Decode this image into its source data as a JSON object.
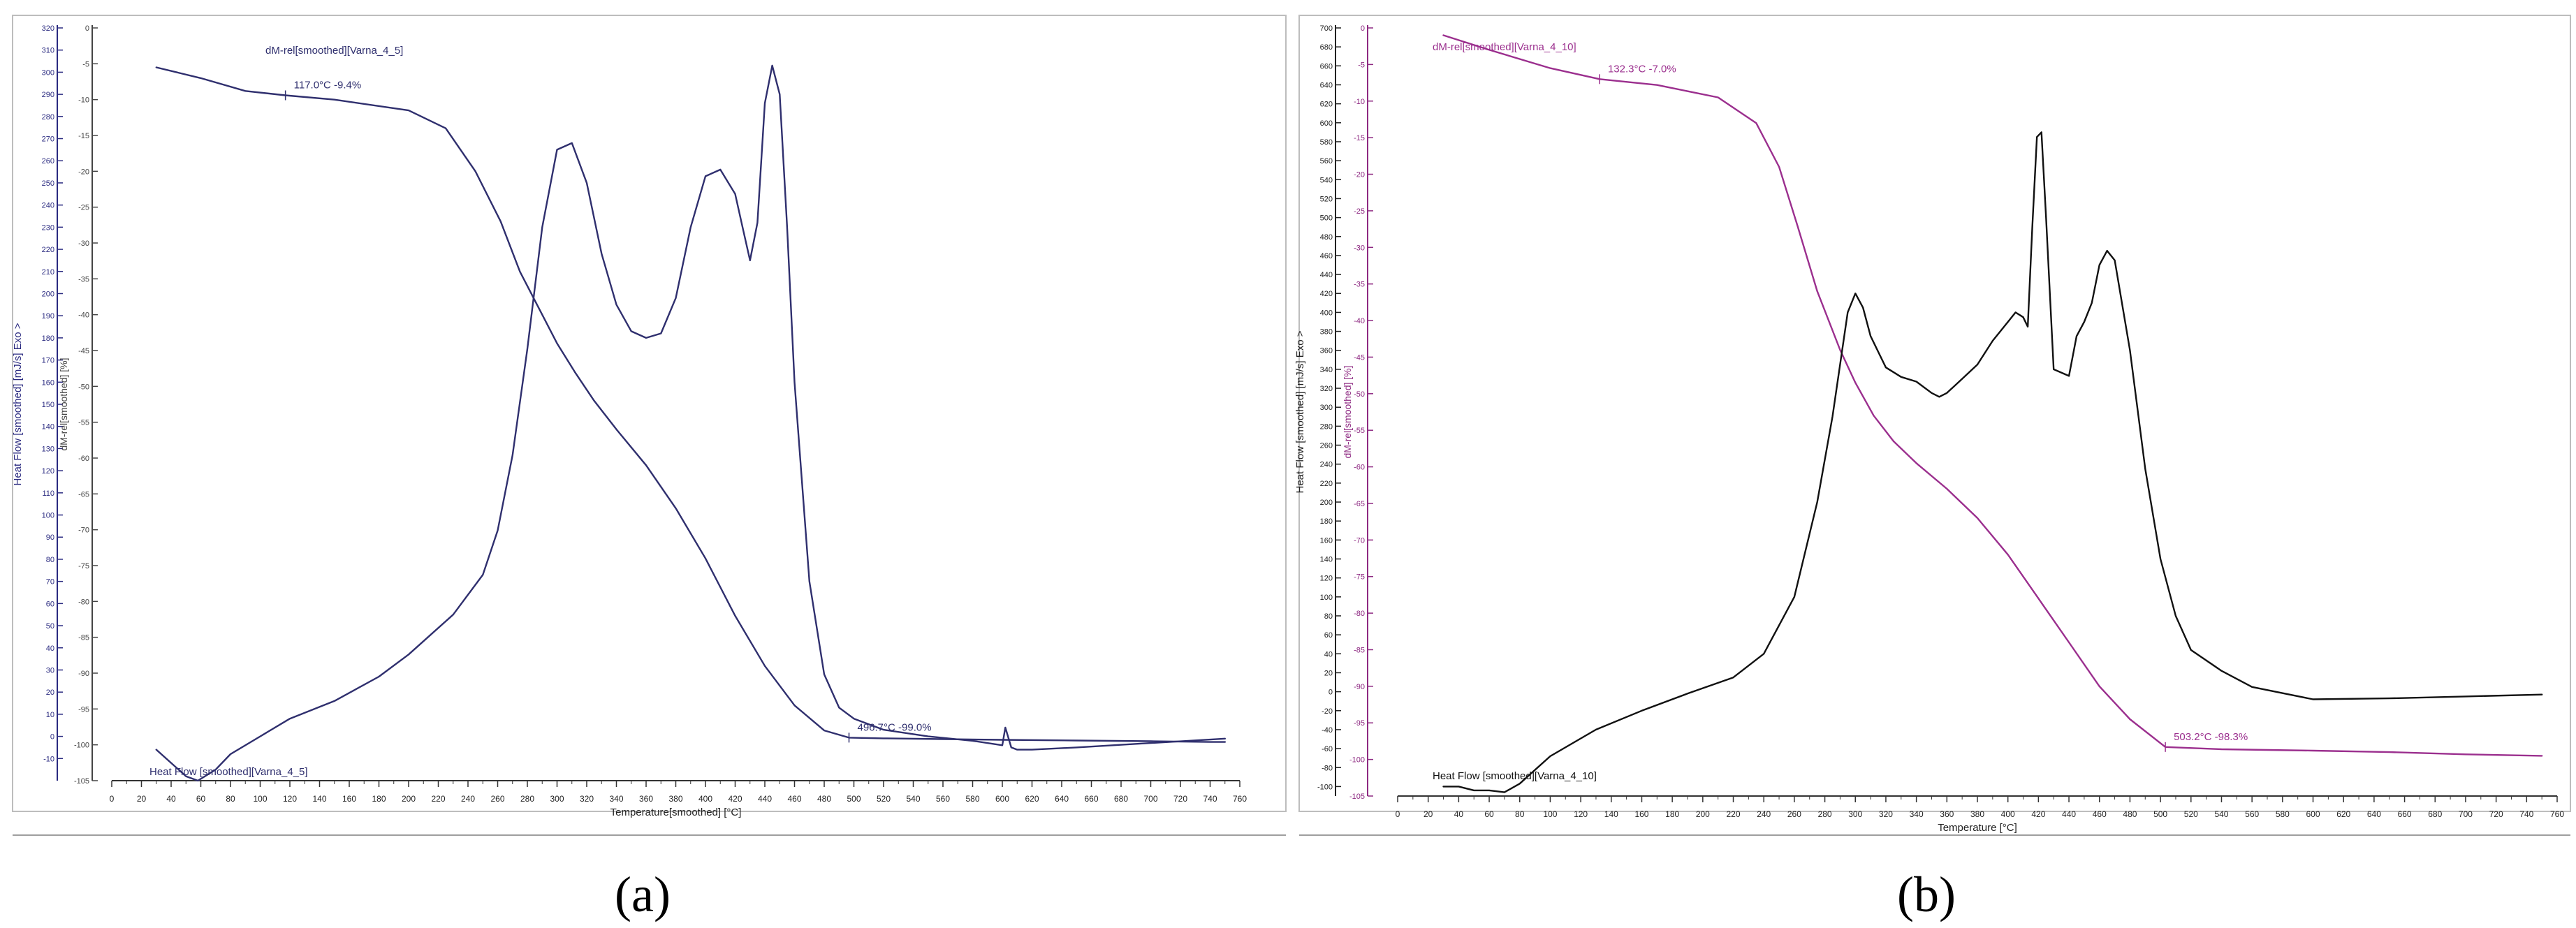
{
  "chart_data": [
    {
      "type": "line",
      "panel_label": "(a)",
      "xlabel": "Temperature[smoothed]  [°C]",
      "ylabel_left": "Heat Flow [smoothed]  [mJ/s] Exo >",
      "ylabel_right": "dM-rel[smoothed]  [%]",
      "xlim": [
        0,
        760
      ],
      "ylim_left": [
        -20,
        320
      ],
      "ylim_right": [
        -105,
        0
      ],
      "x_ticks": [
        0,
        20,
        40,
        60,
        80,
        100,
        120,
        140,
        160,
        180,
        200,
        220,
        240,
        260,
        280,
        300,
        320,
        340,
        360,
        380,
        400,
        420,
        440,
        460,
        480,
        500,
        520,
        540,
        560,
        580,
        600,
        620,
        640,
        660,
        680,
        700,
        720,
        740,
        760
      ],
      "y_ticks_left": [
        -10,
        0,
        10,
        20,
        30,
        40,
        50,
        60,
        70,
        80,
        90,
        100,
        110,
        120,
        130,
        140,
        150,
        160,
        170,
        180,
        190,
        200,
        210,
        220,
        230,
        240,
        250,
        260,
        270,
        280,
        290,
        300,
        310,
        320
      ],
      "y_ticks_right": [
        0,
        -5,
        -10,
        -15,
        -20,
        -25,
        -30,
        -35,
        -40,
        -45,
        -50,
        -55,
        -60,
        -65,
        -70,
        -75,
        -80,
        -85,
        -90,
        -95,
        -100,
        -105
      ],
      "series": [
        {
          "name": "dM-rel[smoothed][Varna_4_5]",
          "axis": "right",
          "color": "#2f2f6e",
          "x": [
            30,
            60,
            90,
            117,
            150,
            200,
            225,
            245,
            262,
            275,
            290,
            300,
            312,
            325,
            340,
            360,
            380,
            400,
            420,
            440,
            460,
            480,
            496.7,
            520,
            560,
            600,
            650,
            700,
            740,
            750
          ],
          "y": [
            -5.5,
            -7.0,
            -8.8,
            -9.4,
            -10.0,
            -11.5,
            -14.0,
            -20.0,
            -27.0,
            -34.0,
            -40.0,
            -44.0,
            -48.0,
            -52.0,
            -56.0,
            -61.0,
            -67.0,
            -74.0,
            -82.0,
            -89.0,
            -94.5,
            -98.0,
            -99.0,
            -99.1,
            -99.2,
            -99.3,
            -99.4,
            -99.5,
            -99.6,
            -99.6
          ]
        },
        {
          "name": "Heat Flow [smoothed][Varna_4_5]",
          "axis": "left",
          "color": "#2f2f6e",
          "x": [
            30,
            40,
            50,
            58,
            70,
            80,
            100,
            120,
            150,
            180,
            200,
            230,
            250,
            260,
            270,
            280,
            290,
            300,
            310,
            320,
            330,
            340,
            350,
            360,
            370,
            380,
            390,
            400,
            410,
            420,
            425,
            430,
            435,
            440,
            445,
            450,
            455,
            460,
            470,
            480,
            490,
            500,
            520,
            550,
            580,
            600,
            602,
            606,
            610,
            620,
            650,
            700,
            750
          ],
          "y": [
            -6,
            -12,
            -18,
            -20,
            -15,
            -8,
            0,
            8,
            16,
            27,
            37,
            55,
            73,
            93,
            127,
            175,
            230,
            265,
            268,
            250,
            218,
            195,
            183,
            180,
            182,
            198,
            230,
            253,
            256,
            245,
            230,
            215,
            232,
            286,
            303,
            290,
            230,
            160,
            70,
            28,
            13,
            8,
            3,
            0,
            -2,
            -4,
            4,
            -5,
            -6,
            -6,
            -5,
            -3,
            -1
          ]
        }
      ],
      "annotations": [
        {
          "text": "117.0°C  -9.4%",
          "x": 117,
          "y": -9.4
        },
        {
          "text": "496.7°C  -99.0%",
          "x": 496.7,
          "y": -99.0
        }
      ]
    },
    {
      "type": "line",
      "panel_label": "(b)",
      "xlabel": "Temperature  [°C]",
      "ylabel_left": "Heat Flow [smoothed]  [mJ/s] Exo >",
      "ylabel_right": "dM-rel[smoothed]  [%]",
      "xlim": [
        0,
        760
      ],
      "ylim_left": [
        -110,
        700
      ],
      "ylim_right": [
        -105,
        0
      ],
      "x_ticks": [
        0,
        20,
        40,
        60,
        80,
        100,
        120,
        140,
        160,
        180,
        200,
        220,
        240,
        260,
        280,
        300,
        320,
        340,
        360,
        380,
        400,
        420,
        440,
        460,
        480,
        500,
        520,
        540,
        560,
        580,
        600,
        620,
        640,
        660,
        680,
        700,
        720,
        740,
        760
      ],
      "y_ticks_left": [
        -100,
        -80,
        -60,
        -40,
        -20,
        0,
        20,
        40,
        60,
        80,
        100,
        120,
        140,
        160,
        180,
        200,
        220,
        240,
        260,
        280,
        300,
        320,
        340,
        360,
        380,
        400,
        420,
        440,
        460,
        480,
        500,
        520,
        540,
        560,
        580,
        600,
        620,
        640,
        660,
        680,
        700
      ],
      "y_ticks_right": [
        0,
        -5,
        -10,
        -15,
        -20,
        -25,
        -30,
        -35,
        -40,
        -45,
        -50,
        -55,
        -60,
        -65,
        -70,
        -75,
        -80,
        -85,
        -90,
        -95,
        -100,
        -105
      ],
      "series": [
        {
          "name": "dM-rel[smoothed][Varna_4_10]",
          "axis": "right",
          "color": "#9b2f8e",
          "x": [
            30,
            60,
            100,
            132.3,
            170,
            210,
            235,
            250,
            262,
            275,
            290,
            300,
            312,
            325,
            340,
            360,
            380,
            400,
            420,
            440,
            460,
            480,
            503.2,
            540,
            600,
            650,
            700,
            750
          ],
          "y": [
            -1.0,
            -3.0,
            -5.5,
            -7.0,
            -7.8,
            -9.5,
            -13.0,
            -19.0,
            -27.0,
            -36.0,
            -44.0,
            -48.5,
            -53.0,
            -56.5,
            -59.5,
            -63.0,
            -67.0,
            -72.0,
            -78.0,
            -84.0,
            -90.0,
            -94.5,
            -98.3,
            -98.6,
            -98.8,
            -99.0,
            -99.3,
            -99.5
          ]
        },
        {
          "name": "Heat Flow [smoothed][Varna_4_10]",
          "axis": "left",
          "color": "#111111",
          "x": [
            30,
            40,
            50,
            60,
            70,
            80,
            100,
            130,
            160,
            190,
            220,
            240,
            260,
            275,
            285,
            295,
            300,
            305,
            310,
            320,
            330,
            340,
            350,
            355,
            360,
            370,
            380,
            390,
            400,
            405,
            410,
            413,
            416,
            419,
            422,
            425,
            430,
            440,
            445,
            450,
            455,
            460,
            465,
            470,
            480,
            490,
            500,
            510,
            520,
            540,
            560,
            600,
            650,
            700,
            750
          ],
          "y": [
            -100,
            -100,
            -104,
            -104,
            -106,
            -97,
            -68,
            -40,
            -20,
            -2,
            15,
            40,
            100,
            200,
            290,
            400,
            420,
            405,
            375,
            342,
            332,
            327,
            315,
            311,
            315,
            330,
            345,
            370,
            390,
            400,
            395,
            385,
            490,
            585,
            590,
            500,
            340,
            333,
            375,
            390,
            410,
            450,
            465,
            455,
            360,
            235,
            140,
            80,
            44,
            22,
            5,
            -8,
            -7,
            -5,
            -3
          ]
        }
      ],
      "annotations": [
        {
          "text": "132.3°C  -7.0%",
          "x": 132.3,
          "y": -7.0
        },
        {
          "text": "503.2°C  -98.3%",
          "x": 503.2,
          "y": -98.3
        }
      ]
    }
  ]
}
